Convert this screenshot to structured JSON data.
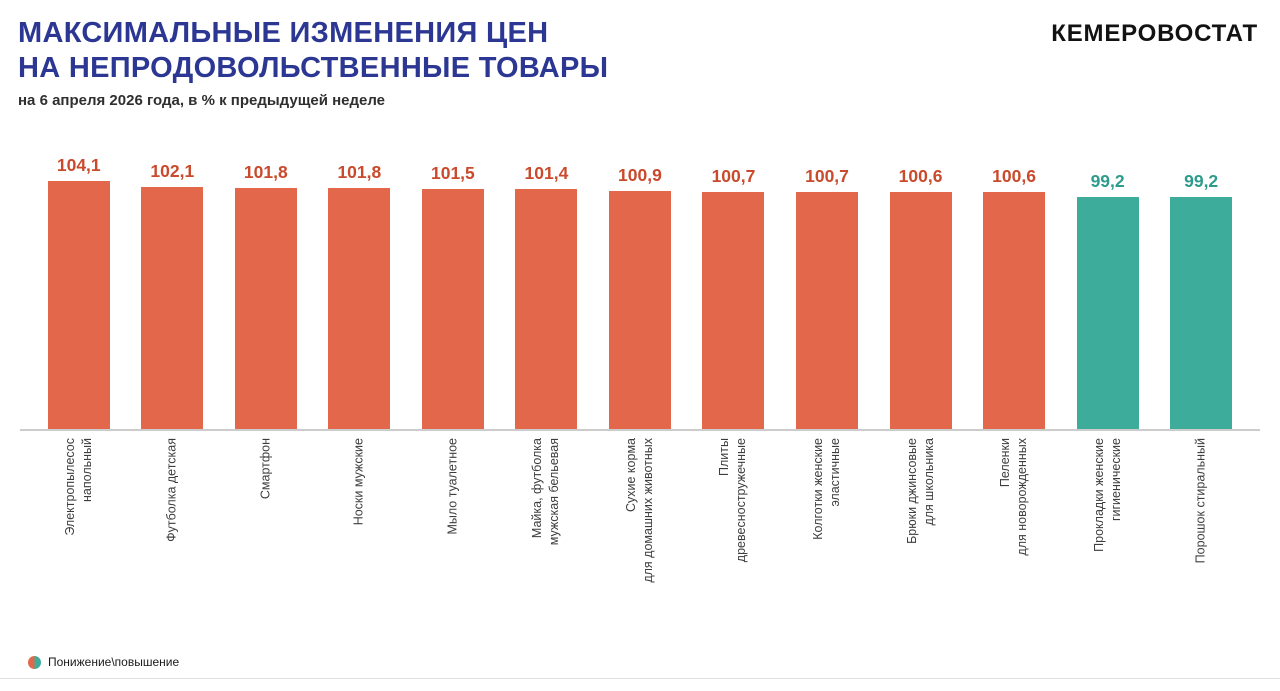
{
  "header": {
    "title_line1": "МАКСИМАЛЬНЫЕ ИЗМЕНЕНИЯ ЦЕН",
    "title_line2": "НА НЕПРОДОВОЛЬСТВЕННЫЕ ТОВАРЫ",
    "subtitle": "на 6 апреля 2026 года, в % к предыдущей неделе",
    "brand": "КЕМЕРОВОСТАТ"
  },
  "legend": {
    "label": "Понижение\\повышение"
  },
  "colors": {
    "title": "#2B3792",
    "increase_bar": "#E3674B",
    "decrease_bar": "#3DAC9B",
    "increase_label": "#C94A2C",
    "decrease_label": "#2E9C8C",
    "axis": "#cccccc"
  },
  "chart_data": {
    "type": "bar",
    "title": "МАКСИМАЛЬНЫЕ ИЗМЕНЕНИЯ ЦЕН НА НЕПРОДОВОЛЬСТВЕННЫЕ ТОВАРЫ",
    "subtitle": "на 6 апреля 2026 года, в % к предыдущей неделе",
    "unit": "% к предыдущей неделе",
    "legend_position": "bottom-left",
    "grid": false,
    "ylim": [
      99.2,
      104.1
    ],
    "categories": [
      [
        "Электропылесос",
        "напольный"
      ],
      [
        "Футболка детская"
      ],
      [
        "Смартфон"
      ],
      [
        "Носки мужские"
      ],
      [
        "Мыло туалетное"
      ],
      [
        "Майка, футболка",
        "мужская бельевая"
      ],
      [
        "Сухие корма",
        "для домашних животных"
      ],
      [
        "Плиты",
        "древесностружечные"
      ],
      [
        "Колготки женские",
        "эластичные"
      ],
      [
        "Брюки джинсовые",
        "для школьника"
      ],
      [
        "Пеленки",
        "для новорожденных"
      ],
      [
        "Прокладки женские",
        "гигиенические"
      ],
      [
        "Порошок стиральный"
      ]
    ],
    "values": [
      104.1,
      102.1,
      101.8,
      101.8,
      101.5,
      101.4,
      100.9,
      100.7,
      100.7,
      100.6,
      100.6,
      99.2,
      99.2
    ],
    "value_labels": [
      "104,1",
      "102,1",
      "101,8",
      "101,8",
      "101,5",
      "101,4",
      "100,9",
      "100,7",
      "100,7",
      "100,6",
      "100,6",
      "99,2",
      "99,2"
    ],
    "directions": [
      "up",
      "up",
      "up",
      "up",
      "up",
      "up",
      "up",
      "up",
      "up",
      "up",
      "up",
      "down",
      "down"
    ]
  }
}
